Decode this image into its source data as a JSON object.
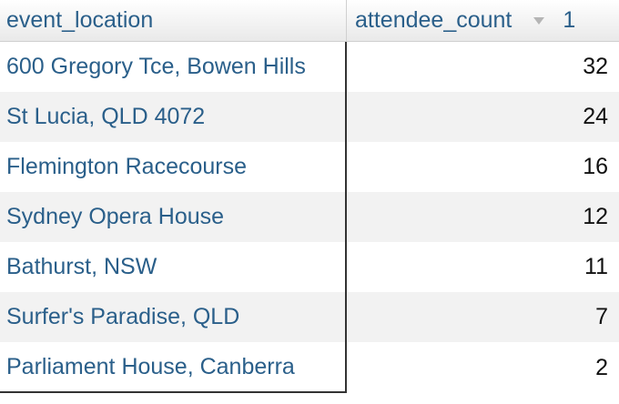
{
  "table": {
    "columns": {
      "location": "event_location",
      "count": "attendee_count",
      "sort_index": "1"
    },
    "rows": [
      {
        "location": "600 Gregory Tce, Bowen Hills",
        "count": "32"
      },
      {
        "location": "St Lucia, QLD 4072",
        "count": "24"
      },
      {
        "location": "Flemington Racecourse",
        "count": "16"
      },
      {
        "location": "Sydney Opera House",
        "count": "12"
      },
      {
        "location": "Bathurst, NSW",
        "count": "11"
      },
      {
        "location": "Surfer's Paradise, QLD",
        "count": "7"
      },
      {
        "location": "Parliament House, Canberra",
        "count": "2"
      }
    ]
  },
  "icons": {
    "sort": "sort-descending-icon"
  },
  "colors": {
    "link_text": "#2a5f8a",
    "row_alt": "#f2f2f2"
  }
}
